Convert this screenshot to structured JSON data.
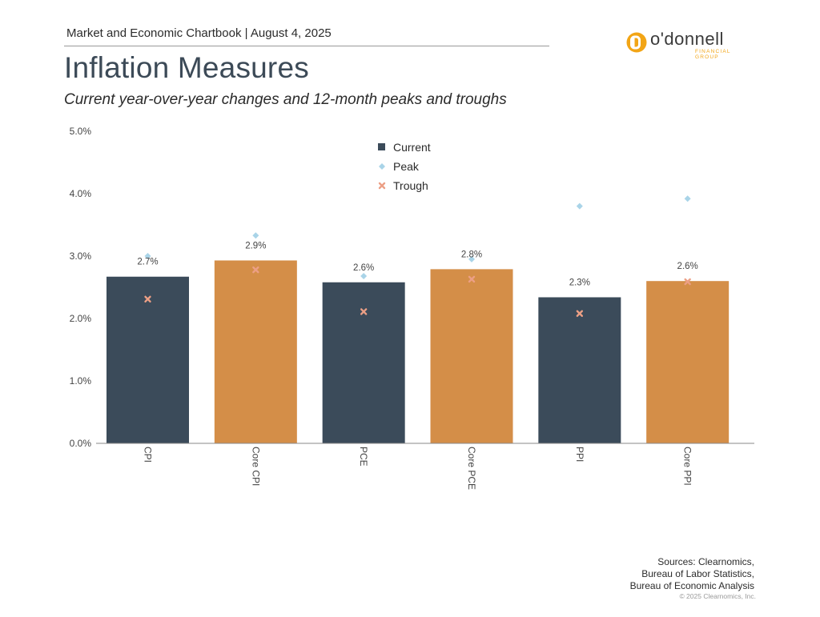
{
  "header": {
    "breadcrumb": "Market and Economic Chartbook | August 4, 2025",
    "logo_name": "o'donnell",
    "logo_sub": "FINANCIAL GROUP"
  },
  "colors": {
    "dark_bar": "#3b4b5a",
    "orange_bar": "#d48e48",
    "peak": "#a9d4e8",
    "trough": "#ec9f85",
    "logo_accent": "#f2a516"
  },
  "footer": {
    "sources_line1": "Sources: Clearnomics,",
    "sources_line2": "Bureau of Labor Statistics,",
    "sources_line3": "Bureau of Economic Analysis",
    "copyright": "© 2025 Clearnomics, Inc."
  },
  "chart_data": {
    "type": "bar",
    "title": "Inflation Measures",
    "subtitle": "Current year-over-year changes and 12-month peaks and troughs",
    "categories": [
      "CPI",
      "Core CPI",
      "PCE",
      "Core PCE",
      "PPI",
      "Core PPI"
    ],
    "series": [
      {
        "name": "Current",
        "values": [
          2.67,
          2.93,
          2.58,
          2.79,
          2.34,
          2.6
        ],
        "labels": [
          "2.7%",
          "2.9%",
          "2.6%",
          "2.8%",
          "2.3%",
          "2.6%"
        ],
        "kind": "bar"
      },
      {
        "name": "Peak",
        "values": [
          3.0,
          3.33,
          2.68,
          2.95,
          3.8,
          3.92
        ],
        "kind": "diamond"
      },
      {
        "name": "Trough",
        "values": [
          2.31,
          2.78,
          2.11,
          2.63,
          2.08,
          2.59
        ],
        "kind": "x"
      }
    ],
    "bar_colors": [
      "dark",
      "orange",
      "dark",
      "orange",
      "dark",
      "orange"
    ],
    "yticks": [
      "0.0%",
      "1.0%",
      "2.0%",
      "3.0%",
      "4.0%",
      "5.0%"
    ],
    "ylim": [
      0,
      5
    ],
    "grid": false,
    "legend_position": "top-center"
  }
}
